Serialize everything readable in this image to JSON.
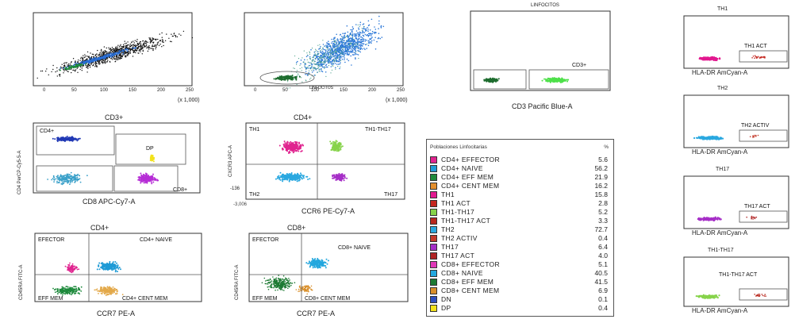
{
  "panels": {
    "p1": {
      "xtick": [
        "0",
        "50",
        "100",
        "150",
        "200",
        "250"
      ],
      "xmult": "(x 1,000)",
      "ytick": [
        "",
        "",
        "",
        "",
        "",
        ""
      ]
    },
    "p2": {
      "xtick": [
        "0",
        "50",
        "100",
        "150",
        "200",
        "250"
      ],
      "xmult": "(x 1,000)",
      "gate": "LINFOCITOS"
    },
    "p3": {
      "title": "LINFOCITOS",
      "gate": "CD3+",
      "xlabel": "CD3 Pacific Blue-A"
    },
    "p4": {
      "title": "CD3+",
      "xlabel": "CD8 APC-Cy7-A",
      "ylabel": "CD4 PerCP-Cy5-5-A",
      "gates": [
        "CD4+",
        "DP",
        "CD8+"
      ]
    },
    "p5": {
      "title": "CD4+",
      "xlabel": "CCR6 PE-Cy7-A",
      "ylabel": "CXCR3 APC-A",
      "quads": [
        "TH1",
        "TH1-TH17",
        "TH2",
        "TH17"
      ],
      "xtick0": "-3,006",
      "ytick0": "-136"
    },
    "p6": {
      "title": "CD4+",
      "xlabel": "CCR7 PE-A",
      "ylabel": "CD45RA FITC-A",
      "quads": [
        "EFECTOR",
        "CD4+ NAIVE",
        "EFF MEM",
        "CD4+ CENT MEM"
      ]
    },
    "p7": {
      "title": "CD8+",
      "xlabel": "CCR7 PE-A",
      "ylabel": "CD45RA FITC-A",
      "quads": [
        "EFECTOR",
        "CD8+ NAIVE",
        "EFF MEM",
        "CD8+ CENT MEM"
      ]
    },
    "r1": {
      "title": "TH1",
      "gate": "TH1 ACT",
      "xlabel": "HLA-DR AmCyan-A"
    },
    "r2": {
      "title": "TH2",
      "gate": "TH2 ACTIV",
      "xlabel": "HLA-DR AmCyan-A"
    },
    "r3": {
      "title": "TH17",
      "gate": "TH17 ACT",
      "xlabel": "HLA-DR AmCyan-A"
    },
    "r4": {
      "title": "TH1-TH17",
      "gate": "TH1-TH17 ACT",
      "xlabel": "HLA-DR AmCyan-A"
    }
  },
  "legend": {
    "header": "Poblaciones Linfocitarias",
    "header_pct": "%",
    "rows": [
      {
        "name": "CD4+ EFFECTOR",
        "pct": "5.6",
        "color": "#e0248f"
      },
      {
        "name": "CD4+ NAIVE",
        "pct": "56.2",
        "color": "#1f9bd6"
      },
      {
        "name": "CD4+ EFF MEM",
        "pct": "21.9",
        "color": "#1e8a3c"
      },
      {
        "name": "CD4+ CENT MEM",
        "pct": "16.2",
        "color": "#e38f2e"
      },
      {
        "name": "TH1",
        "pct": "15.8",
        "color": "#e2188f"
      },
      {
        "name": "TH1 ACT",
        "pct": "2.8",
        "color": "#c4261f"
      },
      {
        "name": "TH1-TH17",
        "pct": "5.2",
        "color": "#86d34a"
      },
      {
        "name": "TH1-TH17 ACT",
        "pct": "3.3",
        "color": "#b8281e"
      },
      {
        "name": "TH2",
        "pct": "72.7",
        "color": "#2aa8e0"
      },
      {
        "name": "TH2 ACTIV",
        "pct": "0.4",
        "color": "#c43a2a"
      },
      {
        "name": "TH17",
        "pct": "6.4",
        "color": "#a62fc7"
      },
      {
        "name": "TH17 ACT",
        "pct": "4.0",
        "color": "#b02424"
      },
      {
        "name": "CD8+ EFFECTOR",
        "pct": "5.1",
        "color": "#e038b8"
      },
      {
        "name": "CD8+ NAIVE",
        "pct": "40.5",
        "color": "#23a7de"
      },
      {
        "name": "CD8+ EFF MEM",
        "pct": "41.5",
        "color": "#1d7a33"
      },
      {
        "name": "CD8+ CENT MEM",
        "pct": "6.9",
        "color": "#d98f2a"
      },
      {
        "name": "DN",
        "pct": "0.1",
        "color": "#2d4fbf"
      },
      {
        "name": "DP",
        "pct": "0.4",
        "color": "#f2e21b"
      }
    ]
  },
  "chart_data": {
    "type": "table",
    "columns": [
      "Poblaciones Linfocitarias",
      "%"
    ],
    "categories": [
      "CD4+ EFFECTOR",
      "CD4+ NAIVE",
      "CD4+ EFF MEM",
      "CD4+ CENT MEM",
      "TH1",
      "TH1 ACT",
      "TH1-TH17",
      "TH1-TH17 ACT",
      "TH2",
      "TH2 ACTIV",
      "TH17",
      "TH17 ACT",
      "CD8+ EFFECTOR",
      "CD8+ NAIVE",
      "CD8+ EFF MEM",
      "CD8+ CENT MEM",
      "DN",
      "DP"
    ],
    "values": [
      5.6,
      56.2,
      21.9,
      16.2,
      15.8,
      2.8,
      5.2,
      3.3,
      72.7,
      0.4,
      6.4,
      4.0,
      5.1,
      40.5,
      41.5,
      6.9,
      0.1,
      0.4
    ]
  }
}
